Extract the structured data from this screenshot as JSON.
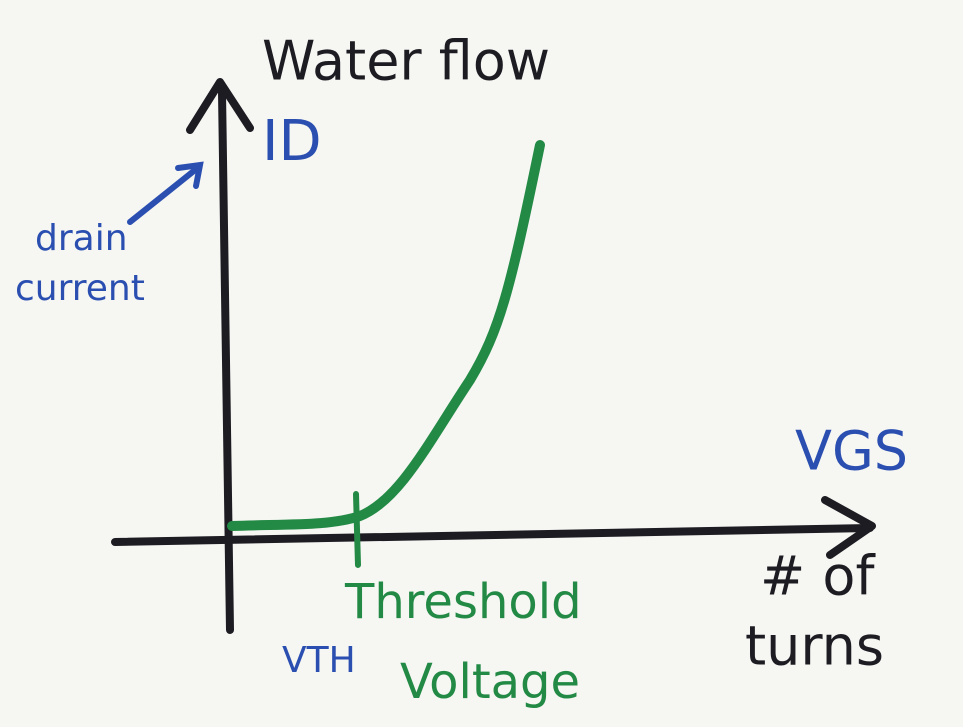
{
  "title": "Water flow",
  "y_axis": {
    "symbol": "ID",
    "note_lines": [
      "drain",
      "current"
    ]
  },
  "x_axis": {
    "symbol": "VGS",
    "note_lines": [
      "# of",
      "turns"
    ]
  },
  "threshold": {
    "symbol": "VTH",
    "label_lines": [
      "Threshold",
      "Voltage"
    ]
  }
}
